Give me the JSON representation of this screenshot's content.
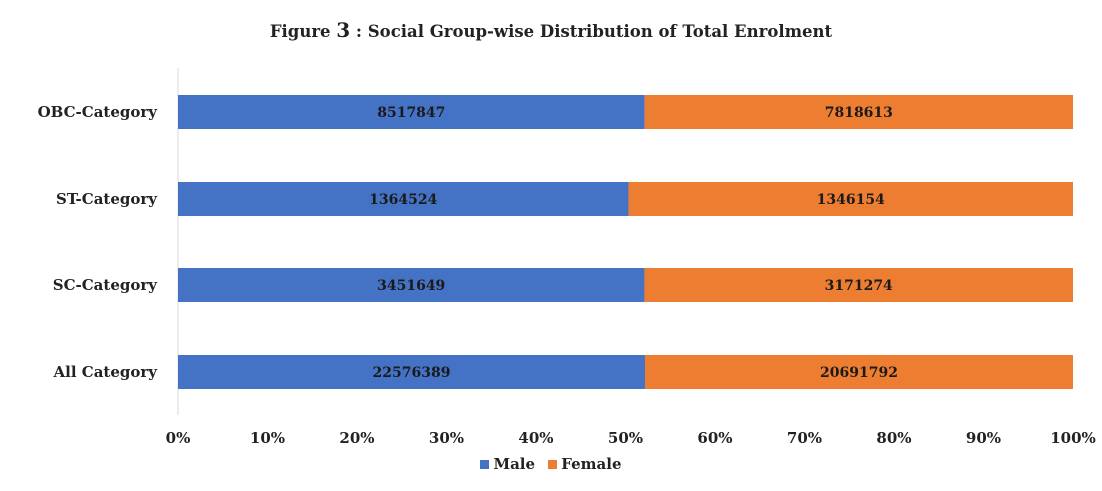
{
  "chart_data": {
    "type": "bar",
    "orientation": "horizontal",
    "stacked": "percent",
    "title_prefix": "Figure ",
    "title_number": "3",
    "title_suffix": " : Social Group-wise Distribution of Total Enrolment",
    "categories": [
      "OBC-Category",
      "ST-Category",
      "SC-Category",
      "All Category"
    ],
    "series": [
      {
        "name": "Male",
        "color": "#4472C4",
        "values": [
          8517847,
          1364524,
          3451649,
          22576389
        ]
      },
      {
        "name": "Female",
        "color": "#ED7D31",
        "values": [
          7818613,
          1346154,
          3171274,
          20691792
        ]
      }
    ],
    "x_ticks": [
      "0%",
      "10%",
      "20%",
      "30%",
      "40%",
      "50%",
      "60%",
      "70%",
      "80%",
      "90%",
      "100%"
    ],
    "xlim": [
      0,
      100
    ],
    "grid": false,
    "legend_position": "bottom"
  }
}
